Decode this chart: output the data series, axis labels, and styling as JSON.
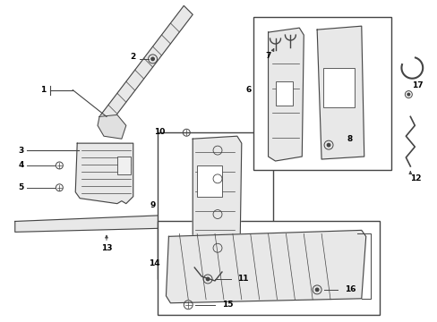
{
  "bg_color": "#ffffff",
  "line_color": "#444444",
  "fig_width": 4.89,
  "fig_height": 3.6,
  "dpi": 100
}
